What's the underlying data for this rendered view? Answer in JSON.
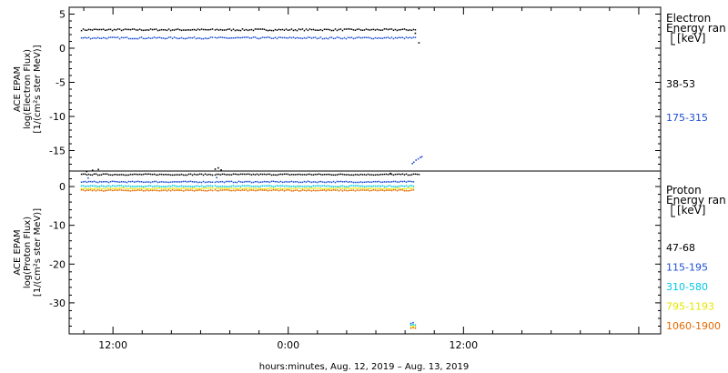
{
  "chart_data": [
    {
      "type": "scatter",
      "ylabel": [
        "ACE EPAM",
        "log(Electron Flux)",
        "[1/(cm²s ster MeV)]"
      ],
      "yticks": [
        5,
        0,
        -5,
        -10,
        -15
      ],
      "ylim": [
        -18,
        6
      ],
      "legend": {
        "title": [
          "Electron",
          "Energy ran",
          "[keV]"
        ],
        "placement": "right"
      },
      "series": [
        {
          "name": "38-53",
          "color": "#000000",
          "segments": [
            {
              "x_from": 9.8,
              "x_to": 18.85,
              "y": 2.7,
              "jitter": 0.12
            },
            {
              "x_from": 18.95,
              "x_to": 32.75,
              "y": 2.7,
              "jitter": 0.12
            }
          ],
          "points": [
            [
              32.95,
              5.8
            ],
            [
              32.95,
              0.8
            ],
            [
              32.7,
              2.2
            ]
          ]
        },
        {
          "name": "175-315",
          "color": "#1f4fd6",
          "segments": [
            {
              "x_from": 9.8,
              "x_to": 18.85,
              "y": 1.5,
              "jitter": 0.12
            },
            {
              "x_from": 18.95,
              "x_to": 32.75,
              "y": 1.5,
              "jitter": 0.12
            }
          ],
          "points": [
            [
              32.5,
              -16.9
            ],
            [
              32.6,
              -16.7
            ],
            [
              32.75,
              -16.4
            ],
            [
              32.9,
              -16.2
            ],
            [
              33.05,
              -16.0
            ],
            [
              33.15,
              -15.9
            ]
          ]
        }
      ]
    },
    {
      "type": "scatter",
      "ylabel": [
        "ACE EPAM",
        "log(Proton Flux)",
        "[1/(cm²s ster MeV)]"
      ],
      "yticks": [
        0,
        -10,
        -20,
        -30
      ],
      "ylim": [
        -38,
        4
      ],
      "legend": {
        "title": [
          "Proton",
          "Energy ran",
          "[keV]"
        ],
        "placement": "right"
      },
      "series": [
        {
          "name": "47-68",
          "color": "#000000",
          "segments": [
            {
              "x_from": 9.8,
              "x_to": 18.85,
              "y": 3.1,
              "jitter": 0.15
            },
            {
              "x_from": 18.95,
              "x_to": 32.95,
              "y": 3.1,
              "jitter": 0.15
            }
          ],
          "points": [
            [
              10.2,
              3.9
            ],
            [
              10.6,
              4.2
            ],
            [
              11.0,
              4.4
            ],
            [
              19.0,
              4.5
            ],
            [
              19.2,
              4.8
            ],
            [
              19.4,
              4.3
            ],
            [
              31.0,
              3.4
            ]
          ]
        },
        {
          "name": "115-195",
          "color": "#1f4fd6",
          "segments": [
            {
              "x_from": 9.8,
              "x_to": 18.85,
              "y": 1.2,
              "jitter": 0.15
            },
            {
              "x_from": 18.95,
              "x_to": 32.65,
              "y": 1.2,
              "jitter": 0.15
            }
          ],
          "points": [
            [
              10.3,
              2.2
            ],
            [
              19.1,
              2.3
            ],
            [
              32.4,
              -35.3
            ],
            [
              32.55,
              -35.1
            ]
          ]
        },
        {
          "name": "310-580",
          "color": "#00c8e6",
          "segments": [
            {
              "x_from": 9.8,
              "x_to": 18.85,
              "y": 0.1,
              "jitter": 0.15
            },
            {
              "x_from": 18.95,
              "x_to": 32.65,
              "y": 0.1,
              "jitter": 0.15
            }
          ],
          "points": [
            [
              32.4,
              -35.7
            ],
            [
              32.55,
              -35.6
            ],
            [
              32.7,
              -35.7
            ]
          ]
        },
        {
          "name": "795-1193",
          "color": "#e6e600",
          "segments": [
            {
              "x_from": 9.8,
              "x_to": 18.85,
              "y": -0.5,
              "jitter": 0.15
            },
            {
              "x_from": 18.95,
              "x_to": 32.65,
              "y": -0.5,
              "jitter": 0.15
            }
          ],
          "points": [
            [
              32.4,
              -36.1
            ],
            [
              32.55,
              -36.0
            ],
            [
              32.7,
              -36.1
            ]
          ]
        },
        {
          "name": "1060-1900",
          "color": "#e66a00",
          "segments": [
            {
              "x_from": 9.8,
              "x_to": 18.85,
              "y": -1.0,
              "jitter": 0.15
            },
            {
              "x_from": 18.95,
              "x_to": 32.65,
              "y": -1.0,
              "jitter": 0.15
            }
          ],
          "points": [
            [
              32.4,
              -36.5
            ],
            [
              32.55,
              -36.4
            ],
            [
              32.7,
              -36.5
            ]
          ]
        }
      ]
    }
  ],
  "x_axis": {
    "xlim": [
      9.0,
      49.5
    ],
    "major_ticks": [
      12,
      24,
      36,
      48
    ],
    "minor_step": 2,
    "tick_labels": [
      {
        "x": 12,
        "label": "12:00"
      },
      {
        "x": 24,
        "label": "0:00"
      },
      {
        "x": 36,
        "label": "12:00"
      }
    ],
    "xlabel": "hours:minutes, Aug. 12, 2019 – Aug. 13, 2019"
  }
}
